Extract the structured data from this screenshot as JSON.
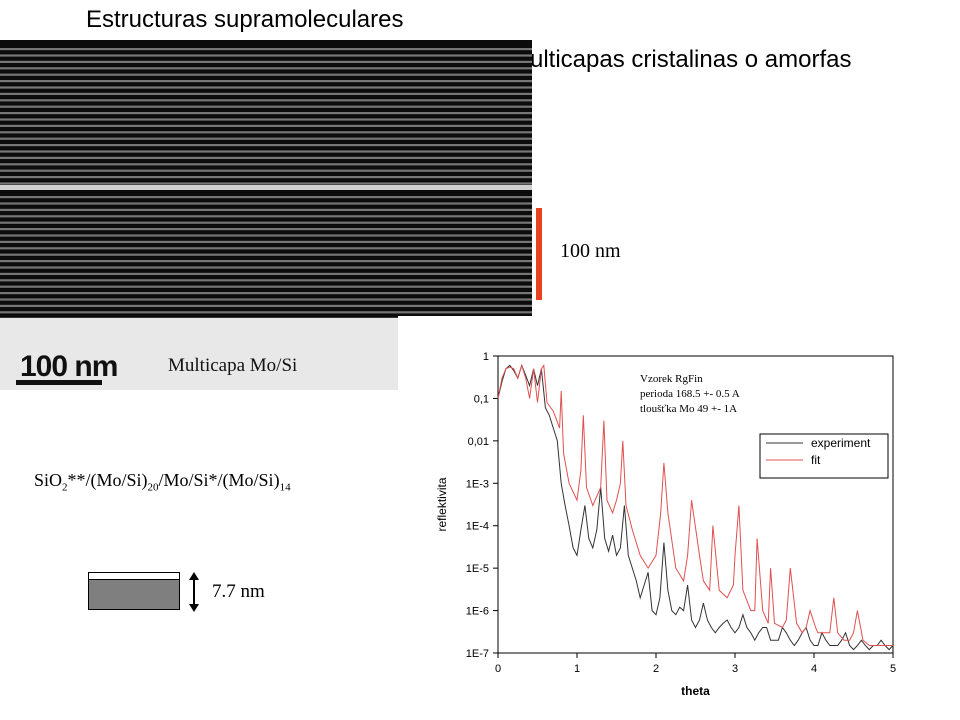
{
  "slide": {
    "title": "Estructuras supramoleculares",
    "subtitle": "Multicapas cristalinas o amorfas"
  },
  "tem_image": {
    "scalebar_text": "100 nm",
    "caption": "Multicapa Mo/Si"
  },
  "scale_indicator": {
    "label": "100 nm",
    "color": "#e8411f"
  },
  "formula": {
    "parts": [
      "SiO",
      "2",
      "**/(Mo/Si)",
      "20",
      "/Mo/Si*/(Mo/Si)",
      "14"
    ]
  },
  "layer_diagram": {
    "thickness_label": "7.7 nm"
  },
  "chart_data": {
    "type": "line",
    "xlabel": "theta",
    "ylabel": "reflektivita",
    "xlim": [
      0,
      5
    ],
    "ylim": [
      1e-07,
      1
    ],
    "yscale": "log",
    "x_ticks": [
      "0",
      "1",
      "2",
      "3",
      "4",
      "5"
    ],
    "y_ticks": [
      "1",
      "0,1",
      "0,01",
      "1E-3",
      "1E-4",
      "1E-5",
      "1E-6",
      "1E-7"
    ],
    "annotation": [
      "Vzorek RgFin",
      "perioda 168.5 +- 0.5 A",
      "tloušťka Mo 49 +- 1A"
    ],
    "legend_position": "top-right",
    "series": [
      {
        "name": "experiment",
        "color": "#333333",
        "x": [
          0.0,
          0.05,
          0.1,
          0.15,
          0.2,
          0.25,
          0.3,
          0.35,
          0.4,
          0.45,
          0.5,
          0.55,
          0.6,
          0.65,
          0.7,
          0.75,
          0.8,
          0.85,
          0.9,
          0.95,
          1.0,
          1.05,
          1.1,
          1.15,
          1.2,
          1.25,
          1.3,
          1.35,
          1.4,
          1.45,
          1.5,
          1.55,
          1.6,
          1.65,
          1.7,
          1.75,
          1.8,
          1.85,
          1.9,
          1.95,
          2.0,
          2.05,
          2.1,
          2.15,
          2.2,
          2.25,
          2.3,
          2.35,
          2.4,
          2.45,
          2.5,
          2.55,
          2.6,
          2.65,
          2.7,
          2.75,
          2.8,
          2.85,
          2.9,
          2.95,
          3.0,
          3.05,
          3.1,
          3.15,
          3.2,
          3.25,
          3.3,
          3.35,
          3.4,
          3.45,
          3.5,
          3.55,
          3.6,
          3.65,
          3.7,
          3.75,
          3.8,
          3.85,
          3.9,
          3.95,
          4.0,
          4.05,
          4.1,
          4.15,
          4.2,
          4.25,
          4.3,
          4.35,
          4.4,
          4.45,
          4.5,
          4.55,
          4.6,
          4.65,
          4.7,
          4.75,
          4.8,
          4.85,
          4.9,
          4.95,
          5.0
        ],
        "values": [
          0.1,
          0.25,
          0.5,
          0.6,
          0.45,
          0.3,
          0.6,
          0.35,
          0.2,
          0.5,
          0.2,
          0.5,
          0.06,
          0.04,
          0.02,
          0.01,
          0.001,
          0.0003,
          0.0001,
          3e-05,
          2e-05,
          8e-05,
          0.0003,
          5e-05,
          3e-05,
          8e-05,
          0.0008,
          5e-05,
          2.5e-05,
          6e-05,
          2e-05,
          3e-05,
          0.0003,
          2e-05,
          1e-05,
          5e-06,
          2e-06,
          4e-06,
          8e-06,
          1e-06,
          8e-07,
          2e-06,
          4e-05,
          3e-06,
          1e-06,
          8e-07,
          1.2e-06,
          1e-06,
          4e-06,
          6e-07,
          4e-07,
          6e-07,
          1.5e-06,
          6e-07,
          4e-07,
          3e-07,
          4e-07,
          5e-07,
          6e-07,
          4e-07,
          3e-07,
          4e-07,
          8e-07,
          4e-07,
          3e-07,
          2e-07,
          3e-07,
          4e-07,
          4e-07,
          2e-07,
          2e-07,
          2e-07,
          4e-07,
          3e-07,
          2e-07,
          1.5e-07,
          2e-07,
          3e-07,
          4e-07,
          2e-07,
          1.5e-07,
          1.5e-07,
          3e-07,
          2e-07,
          1.5e-07,
          1.5e-07,
          1.5e-07,
          2e-07,
          3e-07,
          1.5e-07,
          1.2e-07,
          1.5e-07,
          2e-07,
          1.5e-07,
          1.2e-07,
          1.5e-07,
          1.5e-07,
          2e-07,
          1.5e-07,
          1.2e-07,
          1.5e-07
        ]
      },
      {
        "name": "fit",
        "color": "#e05050",
        "x": [
          0.0,
          0.05,
          0.1,
          0.15,
          0.2,
          0.25,
          0.3,
          0.35,
          0.4,
          0.45,
          0.5,
          0.55,
          0.58,
          0.62,
          0.7,
          0.78,
          0.8,
          0.83,
          0.9,
          1.0,
          1.05,
          1.08,
          1.12,
          1.2,
          1.3,
          1.34,
          1.38,
          1.45,
          1.5,
          1.55,
          1.58,
          1.62,
          1.7,
          1.8,
          1.9,
          2.0,
          2.06,
          2.1,
          2.15,
          2.25,
          2.35,
          2.4,
          2.45,
          2.55,
          2.6,
          2.68,
          2.72,
          2.8,
          2.9,
          2.98,
          3.0,
          3.05,
          3.1,
          3.2,
          3.25,
          3.28,
          3.35,
          3.42,
          3.45,
          3.5,
          3.6,
          3.65,
          3.7,
          3.78,
          3.85,
          3.9,
          3.95,
          4.02,
          4.05,
          4.1,
          4.2,
          4.25,
          4.3,
          4.38,
          4.45,
          4.5,
          4.55,
          4.62,
          4.7,
          4.8,
          4.9,
          5.0
        ],
        "values": [
          0.1,
          0.3,
          0.5,
          0.55,
          0.5,
          0.3,
          0.6,
          0.3,
          0.1,
          0.5,
          0.08,
          0.5,
          0.6,
          0.08,
          0.05,
          0.02,
          0.15,
          0.005,
          0.001,
          0.0004,
          0.002,
          0.04,
          0.0008,
          0.0003,
          0.0008,
          0.03,
          0.0004,
          0.0002,
          0.0004,
          0.001,
          0.01,
          0.0003,
          8e-05,
          2e-05,
          1e-05,
          2e-05,
          0.0002,
          0.003,
          0.0002,
          1e-05,
          5e-06,
          2e-05,
          0.0004,
          2e-05,
          5e-06,
          3e-06,
          0.0001,
          3e-06,
          2e-06,
          4e-06,
          2e-05,
          0.0003,
          3e-06,
          1e-06,
          1e-06,
          5e-05,
          1e-06,
          5e-07,
          1e-05,
          5e-07,
          4e-07,
          6e-07,
          1e-05,
          5e-07,
          3e-07,
          4e-07,
          1e-06,
          4e-07,
          3e-07,
          3e-07,
          3e-07,
          2e-06,
          3e-07,
          2e-07,
          2e-07,
          3e-07,
          1e-06,
          2e-07,
          1.5e-07,
          1.5e-07,
          1.5e-07,
          1.5e-07
        ]
      }
    ]
  }
}
